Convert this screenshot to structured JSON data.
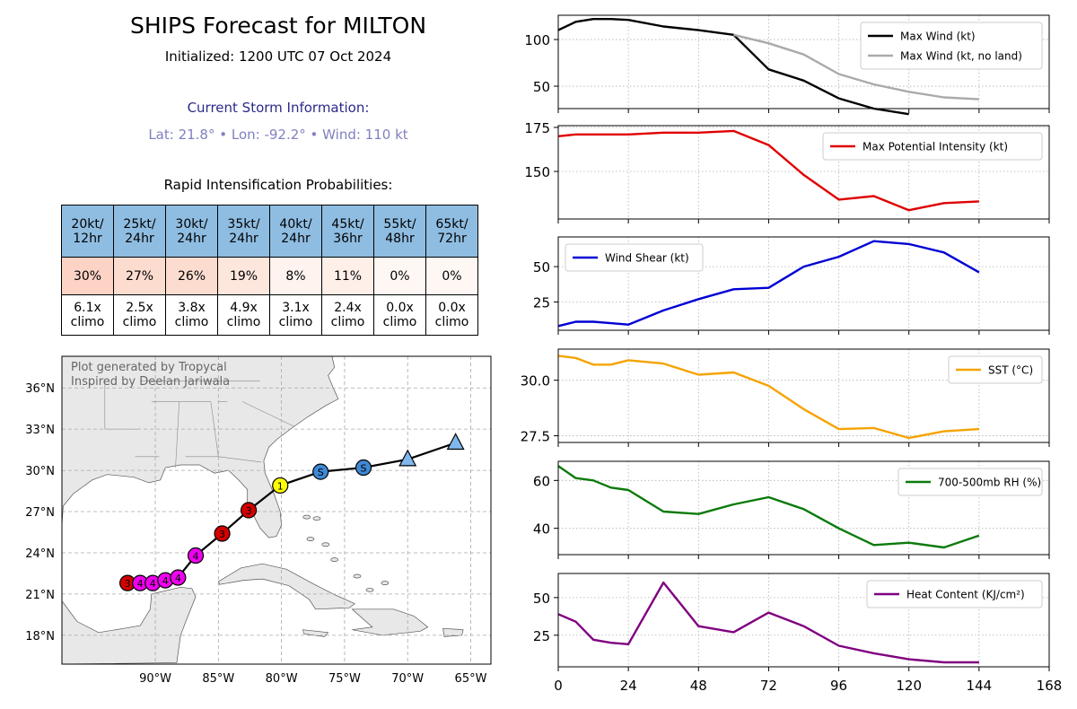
{
  "header": {
    "title": "SHIPS Forecast for MILTON",
    "subtitle": "Initialized: 1200 UTC 07 Oct 2024",
    "storm_heading": "Current Storm Information:",
    "storm_line": "Lat: 21.8°  • Lon: -92.2°  • Wind: 110 kt"
  },
  "ri": {
    "title": "Rapid Intensification Probabilities:",
    "columns": [
      {
        "l1": "20kt/",
        "l2": "12hr",
        "pct": "30%",
        "c1": "6.1x",
        "c2": "climo",
        "color": "#fcd3c5"
      },
      {
        "l1": "25kt/",
        "l2": "24hr",
        "pct": "27%",
        "c1": "2.5x",
        "c2": "climo",
        "color": "#fcdccf"
      },
      {
        "l1": "30kt/",
        "l2": "24hr",
        "pct": "26%",
        "c1": "3.8x",
        "c2": "climo",
        "color": "#fcdccf"
      },
      {
        "l1": "35kt/",
        "l2": "24hr",
        "pct": "19%",
        "c1": "4.9x",
        "c2": "climo",
        "color": "#fde6dc"
      },
      {
        "l1": "40kt/",
        "l2": "24hr",
        "pct": "8%",
        "c1": "3.1x",
        "c2": "climo",
        "color": "#fef3ee"
      },
      {
        "l1": "45kt/",
        "l2": "36hr",
        "pct": "11%",
        "c1": "2.4x",
        "c2": "climo",
        "color": "#feefe8"
      },
      {
        "l1": "55kt/",
        "l2": "48hr",
        "pct": "0%",
        "c1": "0.0x",
        "c2": "climo",
        "color": "#fff7f4"
      },
      {
        "l1": "65kt/",
        "l2": "72hr",
        "pct": "0%",
        "c1": "0.0x",
        "c2": "climo",
        "color": "#fff7f4"
      }
    ]
  },
  "map": {
    "credit1": "Plot generated by Tropycal",
    "credit2": "Inspired by Deelan Jariwala",
    "lon_ticks": [
      {
        "v": -90,
        "l": "90°W"
      },
      {
        "v": -85,
        "l": "85°W"
      },
      {
        "v": -80,
        "l": "80°W"
      },
      {
        "v": -75,
        "l": "75°W"
      },
      {
        "v": -70,
        "l": "70°W"
      },
      {
        "v": -65,
        "l": "65°W"
      }
    ],
    "lat_ticks": [
      {
        "v": 18,
        "l": "18°N"
      },
      {
        "v": 21,
        "l": "21°N"
      },
      {
        "v": 24,
        "l": "24°N"
      },
      {
        "v": 27,
        "l": "27°N"
      },
      {
        "v": 30,
        "l": "30°N"
      },
      {
        "v": 33,
        "l": "33°N"
      },
      {
        "v": 36,
        "l": "36°N"
      }
    ],
    "track": [
      {
        "lon": -92.2,
        "lat": 21.8,
        "label": "3",
        "color": "#d40000",
        "shape": "circle"
      },
      {
        "lon": -91.2,
        "lat": 21.8,
        "label": "4",
        "color": "#ee00ee",
        "shape": "circle"
      },
      {
        "lon": -90.2,
        "lat": 21.8,
        "label": "4",
        "color": "#ee00ee",
        "shape": "circle"
      },
      {
        "lon": -89.2,
        "lat": 22.0,
        "label": "4",
        "color": "#ee00ee",
        "shape": "circle"
      },
      {
        "lon": -88.2,
        "lat": 22.2,
        "label": "4",
        "color": "#ee00ee",
        "shape": "circle"
      },
      {
        "lon": -86.8,
        "lat": 23.8,
        "label": "4",
        "color": "#ee00ee",
        "shape": "circle"
      },
      {
        "lon": -84.7,
        "lat": 25.4,
        "label": "3",
        "color": "#d40000",
        "shape": "circle"
      },
      {
        "lon": -82.6,
        "lat": 27.1,
        "label": "3",
        "color": "#d40000",
        "shape": "circle"
      },
      {
        "lon": -80.1,
        "lat": 28.9,
        "label": "1",
        "color": "#ffff00",
        "shape": "circle"
      },
      {
        "lon": -76.9,
        "lat": 29.9,
        "label": "S",
        "color": "#3f88d4",
        "shape": "circle"
      },
      {
        "lon": -73.5,
        "lat": 30.2,
        "label": "S",
        "color": "#3f88d4",
        "shape": "circle"
      },
      {
        "lon": -70.0,
        "lat": 30.8,
        "label": "",
        "color": "#7fb7ee",
        "shape": "triangle"
      },
      {
        "lon": -66.2,
        "lat": 32.0,
        "label": "",
        "color": "#7fb7ee",
        "shape": "triangle"
      }
    ]
  },
  "panels": {
    "x_ticks": [
      0,
      24,
      48,
      72,
      96,
      120,
      144,
      168
    ],
    "x_tick_labels": [
      "0",
      "24",
      "48",
      "72",
      "96",
      "120",
      "144",
      "168"
    ]
  },
  "chart_data": [
    {
      "type": "line",
      "title": "",
      "xlabel": "",
      "ylabel": "",
      "ylim": [
        26,
        126
      ],
      "xlim": [
        0,
        168
      ],
      "grid": true,
      "legend": "top-right",
      "yticks": [
        50,
        100
      ],
      "series": [
        {
          "name": "Max Wind (kt)",
          "color": "#000000",
          "x": [
            0,
            6,
            12,
            18,
            24,
            36,
            48,
            60,
            72,
            84,
            96,
            108,
            120
          ],
          "y": [
            110,
            119,
            122,
            122,
            121,
            114,
            110,
            105,
            68,
            56,
            37,
            26,
            20
          ]
        },
        {
          "name": "Max Wind (kt, no land)",
          "color": "#aaaaaa",
          "x": [
            60,
            72,
            84,
            96,
            108,
            120,
            132,
            144
          ],
          "y": [
            105,
            96,
            84,
            63,
            52,
            44,
            38,
            36
          ]
        }
      ]
    },
    {
      "type": "line",
      "title": "",
      "xlabel": "",
      "ylabel": "",
      "ylim": [
        123,
        176
      ],
      "xlim": [
        0,
        168
      ],
      "grid": true,
      "legend": "top-right",
      "yticks": [
        150,
        175
      ],
      "series": [
        {
          "name": "Max Potential Intensity (kt)",
          "color": "#e00000",
          "x": [
            0,
            6,
            12,
            18,
            24,
            36,
            48,
            60,
            72,
            84,
            96,
            108,
            120,
            132,
            144
          ],
          "y": [
            170,
            171,
            171,
            171,
            171,
            172,
            172,
            173,
            165,
            148,
            134,
            136,
            128,
            132,
            133
          ]
        }
      ]
    },
    {
      "type": "line",
      "title": "",
      "xlabel": "",
      "ylabel": "",
      "ylim": [
        5,
        71
      ],
      "xlim": [
        0,
        168
      ],
      "grid": true,
      "legend": "top-left",
      "yticks": [
        25,
        50
      ],
      "series": [
        {
          "name": "Wind Shear (kt)",
          "color": "#0000d4",
          "x": [
            0,
            6,
            12,
            18,
            24,
            36,
            48,
            60,
            72,
            84,
            96,
            108,
            120,
            132,
            144
          ],
          "y": [
            8,
            11,
            11,
            10,
            9,
            19,
            27,
            34,
            35,
            50,
            57,
            68,
            66,
            60,
            46
          ]
        }
      ]
    },
    {
      "type": "line",
      "title": "",
      "xlabel": "",
      "ylabel": "",
      "ylim": [
        27.2,
        31.4
      ],
      "xlim": [
        0,
        168
      ],
      "grid": true,
      "legend": "top-right",
      "yticks": [
        27.5,
        30.0
      ],
      "series": [
        {
          "name": "SST (°C)",
          "color": "#f5a300",
          "x": [
            0,
            6,
            12,
            18,
            24,
            36,
            48,
            60,
            72,
            84,
            96,
            108,
            120,
            132,
            144
          ],
          "y": [
            31.1,
            31.0,
            30.7,
            30.7,
            30.9,
            30.75,
            30.25,
            30.35,
            29.75,
            28.7,
            27.8,
            27.85,
            27.4,
            27.7,
            27.8
          ]
        }
      ]
    },
    {
      "type": "line",
      "title": "",
      "xlabel": "",
      "ylabel": "",
      "ylim": [
        29,
        68
      ],
      "xlim": [
        0,
        168
      ],
      "grid": true,
      "legend": "top-right",
      "yticks": [
        40,
        60
      ],
      "series": [
        {
          "name": "700-500mb RH (%)",
          "color": "#0a7a0a",
          "x": [
            0,
            6,
            12,
            18,
            24,
            36,
            48,
            60,
            72,
            84,
            96,
            108,
            120,
            132,
            144
          ],
          "y": [
            66,
            61,
            60,
            57,
            56,
            47,
            46,
            50,
            53,
            48,
            40,
            33,
            34,
            32,
            37
          ]
        }
      ]
    },
    {
      "type": "line",
      "title": "",
      "xlabel": "",
      "ylabel": "",
      "ylim": [
        4,
        66
      ],
      "xlim": [
        0,
        168
      ],
      "grid": true,
      "legend": "top-right",
      "yticks": [
        25,
        50
      ],
      "series": [
        {
          "name": "Heat Content (KJ/cm²)",
          "color": "#800080",
          "x": [
            0,
            6,
            12,
            18,
            24,
            36,
            48,
            60,
            72,
            84,
            96,
            108,
            120,
            132,
            144
          ],
          "y": [
            39,
            34,
            22,
            20,
            19,
            60,
            31,
            27,
            40,
            31,
            18,
            13,
            9,
            7,
            7
          ]
        }
      ]
    }
  ]
}
